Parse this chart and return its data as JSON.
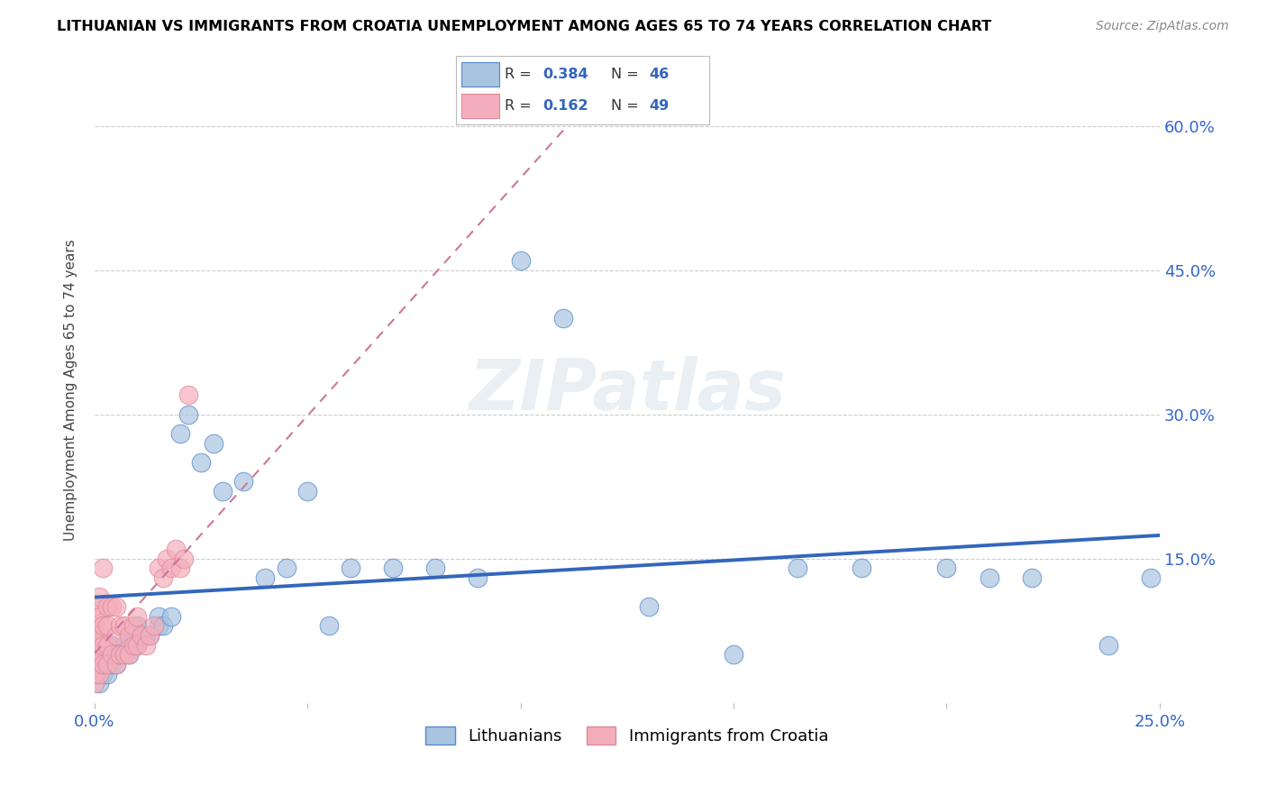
{
  "title": "LITHUANIAN VS IMMIGRANTS FROM CROATIA UNEMPLOYMENT AMONG AGES 65 TO 74 YEARS CORRELATION CHART",
  "source": "Source: ZipAtlas.com",
  "ylabel": "Unemployment Among Ages 65 to 74 years",
  "xlim": [
    0.0,
    0.25
  ],
  "ylim": [
    0.0,
    0.65
  ],
  "xticks": [
    0.0,
    0.05,
    0.1,
    0.15,
    0.2,
    0.25
  ],
  "yticks": [
    0.0,
    0.15,
    0.3,
    0.45,
    0.6
  ],
  "xtick_labels": [
    "0.0%",
    "",
    "",
    "",
    "",
    "25.0%"
  ],
  "ytick_labels": [
    "",
    "15.0%",
    "30.0%",
    "45.0%",
    "60.0%"
  ],
  "legend1_r": "0.384",
  "legend1_n": "46",
  "legend2_r": "0.162",
  "legend2_n": "49",
  "blue_color": "#A8C4E0",
  "pink_color": "#F4AEBB",
  "blue_line_color": "#3366BB",
  "pink_line_color": "#CC7799",
  "blue_edge_color": "#5588CC",
  "pink_edge_color": "#DD8899",
  "watermark": "ZIPatlas",
  "lith_x": [
    0.001,
    0.002,
    0.002,
    0.003,
    0.003,
    0.004,
    0.004,
    0.005,
    0.005,
    0.006,
    0.007,
    0.008,
    0.009,
    0.01,
    0.01,
    0.012,
    0.013,
    0.015,
    0.015,
    0.016,
    0.018,
    0.02,
    0.022,
    0.025,
    0.028,
    0.03,
    0.035,
    0.04,
    0.045,
    0.05,
    0.055,
    0.06,
    0.07,
    0.08,
    0.09,
    0.1,
    0.11,
    0.13,
    0.15,
    0.165,
    0.18,
    0.2,
    0.21,
    0.22,
    0.238,
    0.248
  ],
  "lith_y": [
    0.02,
    0.03,
    0.04,
    0.03,
    0.05,
    0.04,
    0.06,
    0.04,
    0.05,
    0.05,
    0.06,
    0.05,
    0.07,
    0.06,
    0.08,
    0.07,
    0.07,
    0.08,
    0.09,
    0.08,
    0.09,
    0.28,
    0.3,
    0.25,
    0.27,
    0.22,
    0.23,
    0.13,
    0.14,
    0.22,
    0.08,
    0.14,
    0.14,
    0.14,
    0.13,
    0.46,
    0.4,
    0.1,
    0.05,
    0.14,
    0.14,
    0.14,
    0.13,
    0.13,
    0.06,
    0.13
  ],
  "cro_x": [
    0.0,
    0.0,
    0.0,
    0.0,
    0.0,
    0.0,
    0.0,
    0.0,
    0.0,
    0.001,
    0.001,
    0.001,
    0.001,
    0.001,
    0.002,
    0.002,
    0.002,
    0.002,
    0.003,
    0.003,
    0.003,
    0.003,
    0.004,
    0.004,
    0.005,
    0.005,
    0.005,
    0.006,
    0.006,
    0.007,
    0.007,
    0.008,
    0.008,
    0.009,
    0.009,
    0.01,
    0.01,
    0.011,
    0.012,
    0.013,
    0.014,
    0.015,
    0.016,
    0.017,
    0.018,
    0.019,
    0.02,
    0.021,
    0.022
  ],
  "cro_y": [
    0.02,
    0.03,
    0.04,
    0.05,
    0.06,
    0.07,
    0.08,
    0.09,
    0.1,
    0.03,
    0.05,
    0.07,
    0.09,
    0.11,
    0.04,
    0.06,
    0.08,
    0.14,
    0.04,
    0.06,
    0.08,
    0.1,
    0.05,
    0.1,
    0.04,
    0.07,
    0.1,
    0.05,
    0.08,
    0.05,
    0.08,
    0.05,
    0.07,
    0.06,
    0.08,
    0.06,
    0.09,
    0.07,
    0.06,
    0.07,
    0.08,
    0.14,
    0.13,
    0.15,
    0.14,
    0.16,
    0.14,
    0.15,
    0.32
  ]
}
